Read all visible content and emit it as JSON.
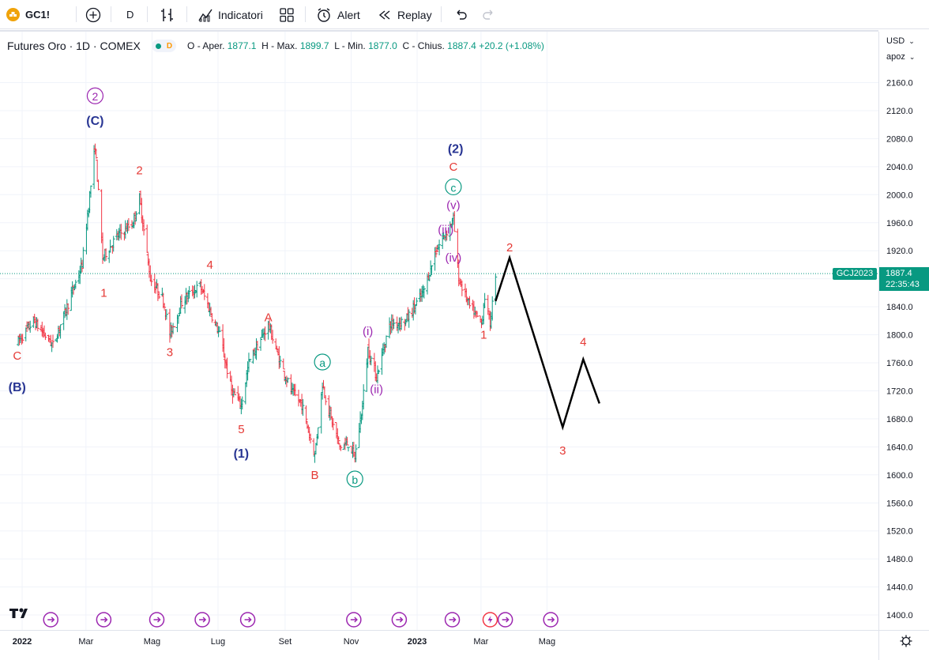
{
  "toolbar": {
    "symbol": "GC1!",
    "interval": "D",
    "indicators_label": "Indicatori",
    "alert_label": "Alert",
    "replay_label": "Replay"
  },
  "legend": {
    "title": "Futures Oro · 1D · COMEX",
    "badge": "D",
    "open_key": "O - Aper.",
    "open_val": "1877.1",
    "high_key": "H - Max.",
    "high_val": "1899.7",
    "low_key": "L - Min.",
    "low_val": "1877.0",
    "close_key": "C - Chius.",
    "close_val": "1887.4",
    "change": "+20.2 (+1.08%)"
  },
  "price_scale": {
    "currency": "USD",
    "mode": "apoz",
    "last_label": "GCJ2023",
    "last_price": "1887.4",
    "countdown": "22:35:43"
  },
  "colors": {
    "up": "#089981",
    "down": "#f23645",
    "wave_red": "#e53935",
    "wave_blue": "#283593",
    "wave_purple": "#9c27b0",
    "wave_teal": "#089981",
    "projection": "#000000",
    "grid": "#f0f3fa",
    "last_price_bg": "#089981"
  },
  "chart_data": {
    "type": "ohlc",
    "instrument": "Futures Oro · 1D · COMEX",
    "y_ticks": [
      "2160.0",
      "2120.0",
      "2080.0",
      "2040.0",
      "2000.0",
      "1960.0",
      "1920.0",
      "1880.0",
      "1840.0",
      "1800.0",
      "1760.0",
      "1720.0",
      "1680.0",
      "1640.0",
      "1600.0",
      "1560.0",
      "1520.0",
      "1480.0",
      "1440.0",
      "1400.0"
    ],
    "x_ticks": [
      "2022",
      "Mar",
      "Mag",
      "Lug",
      "Set",
      "Nov",
      "2023",
      "Mar",
      "Mag"
    ],
    "ylim": [
      1380,
      2195
    ],
    "last_price": 1887.4,
    "price_path": [
      {
        "x": "2021-12-27",
        "y": 1790
      },
      {
        "x": "2022-01-10",
        "y": 1820
      },
      {
        "x": "2022-01-28",
        "y": 1785
      },
      {
        "x": "2022-02-10",
        "y": 1840
      },
      {
        "x": "2022-02-24",
        "y": 1900
      },
      {
        "x": "2022-03-08",
        "y": 2070
      },
      {
        "x": "2022-03-15",
        "y": 1910
      },
      {
        "x": "2022-03-28",
        "y": 1940
      },
      {
        "x": "2022-04-12",
        "y": 1960
      },
      {
        "x": "2022-04-18",
        "y": 1995
      },
      {
        "x": "2022-04-28",
        "y": 1880
      },
      {
        "x": "2022-05-10",
        "y": 1850
      },
      {
        "x": "2022-05-16",
        "y": 1800
      },
      {
        "x": "2022-05-28",
        "y": 1850
      },
      {
        "x": "2022-06-13",
        "y": 1870
      },
      {
        "x": "2022-06-22",
        "y": 1835
      },
      {
        "x": "2022-07-01",
        "y": 1800
      },
      {
        "x": "2022-07-12",
        "y": 1720
      },
      {
        "x": "2022-07-21",
        "y": 1700
      },
      {
        "x": "2022-07-28",
        "y": 1760
      },
      {
        "x": "2022-08-15",
        "y": 1815
      },
      {
        "x": "2022-08-25",
        "y": 1765
      },
      {
        "x": "2022-09-05",
        "y": 1720
      },
      {
        "x": "2022-09-15",
        "y": 1700
      },
      {
        "x": "2022-09-27",
        "y": 1628
      },
      {
        "x": "2022-10-04",
        "y": 1730
      },
      {
        "x": "2022-10-12",
        "y": 1680
      },
      {
        "x": "2022-10-20",
        "y": 1640
      },
      {
        "x": "2022-10-28",
        "y": 1645
      },
      {
        "x": "2022-11-03",
        "y": 1625
      },
      {
        "x": "2022-11-10",
        "y": 1700
      },
      {
        "x": "2022-11-15",
        "y": 1780
      },
      {
        "x": "2022-11-23",
        "y": 1740
      },
      {
        "x": "2022-12-05",
        "y": 1815
      },
      {
        "x": "2022-12-20",
        "y": 1820
      },
      {
        "x": "2023-01-05",
        "y": 1860
      },
      {
        "x": "2023-01-17",
        "y": 1920
      },
      {
        "x": "2023-01-26",
        "y": 1945
      },
      {
        "x": "2023-02-02",
        "y": 1965
      },
      {
        "x": "2023-02-07",
        "y": 1880
      },
      {
        "x": "2023-02-17",
        "y": 1840
      },
      {
        "x": "2023-02-28",
        "y": 1815
      },
      {
        "x": "2023-03-03",
        "y": 1855
      },
      {
        "x": "2023-03-08",
        "y": 1815
      },
      {
        "x": "2023-03-13",
        "y": 1887.4
      }
    ],
    "projection": [
      {
        "x": "2023-03-13",
        "y": 1848
      },
      {
        "x": "2023-03-26",
        "y": 1910
      },
      {
        "x": "2023-05-14",
        "y": 1668
      },
      {
        "x": "2023-06-02",
        "y": 1765
      },
      {
        "x": "2023-06-17",
        "y": 1702
      }
    ],
    "wave_labels": [
      {
        "text": "C",
        "x": "2021-12-26",
        "y": 1770,
        "color": "red"
      },
      {
        "text": "(B)",
        "x": "2021-12-26",
        "y": 1725,
        "color": "blue"
      },
      {
        "text": "2",
        "x": "2022-03-08",
        "y": 2140,
        "color": "purple",
        "circled": true
      },
      {
        "text": "(C)",
        "x": "2022-03-08",
        "y": 2105,
        "color": "blue"
      },
      {
        "text": "1",
        "x": "2022-03-16",
        "y": 1860,
        "color": "red"
      },
      {
        "text": "2",
        "x": "2022-04-18",
        "y": 2035,
        "color": "red"
      },
      {
        "text": "3",
        "x": "2022-05-16",
        "y": 1775,
        "color": "red"
      },
      {
        "text": "4",
        "x": "2022-06-22",
        "y": 1900,
        "color": "red"
      },
      {
        "text": "5",
        "x": "2022-07-21",
        "y": 1665,
        "color": "red"
      },
      {
        "text": "(1)",
        "x": "2022-07-21",
        "y": 1630,
        "color": "blue"
      },
      {
        "text": "A",
        "x": "2022-08-15",
        "y": 1825,
        "color": "red"
      },
      {
        "text": "a",
        "x": "2022-10-04",
        "y": 1760,
        "color": "teal",
        "circled": true
      },
      {
        "text": "B",
        "x": "2022-09-27",
        "y": 1600,
        "color": "red"
      },
      {
        "text": "b",
        "x": "2022-11-03",
        "y": 1593,
        "color": "teal",
        "circled": true
      },
      {
        "text": "(i)",
        "x": "2022-11-15",
        "y": 1805,
        "color": "purple"
      },
      {
        "text": "(ii)",
        "x": "2022-11-23",
        "y": 1722,
        "color": "purple"
      },
      {
        "text": "(iii)",
        "x": "2023-01-26",
        "y": 1950,
        "color": "purple"
      },
      {
        "text": "(iv)",
        "x": "2023-02-02",
        "y": 1910,
        "color": "purple"
      },
      {
        "text": "(v)",
        "x": "2023-02-02",
        "y": 1985,
        "color": "purple"
      },
      {
        "text": "c",
        "x": "2023-02-02",
        "y": 2010,
        "color": "teal",
        "circled": true
      },
      {
        "text": "C",
        "x": "2023-02-02",
        "y": 2040,
        "color": "red"
      },
      {
        "text": "(2)",
        "x": "2023-02-04",
        "y": 2065,
        "color": "blue"
      },
      {
        "text": "1",
        "x": "2023-03-02",
        "y": 1800,
        "color": "red"
      },
      {
        "text": "2",
        "x": "2023-03-26",
        "y": 1925,
        "color": "red"
      },
      {
        "text": "3",
        "x": "2023-05-14",
        "y": 1635,
        "color": "red"
      },
      {
        "text": "4",
        "x": "2023-06-02",
        "y": 1790,
        "color": "red"
      }
    ]
  }
}
